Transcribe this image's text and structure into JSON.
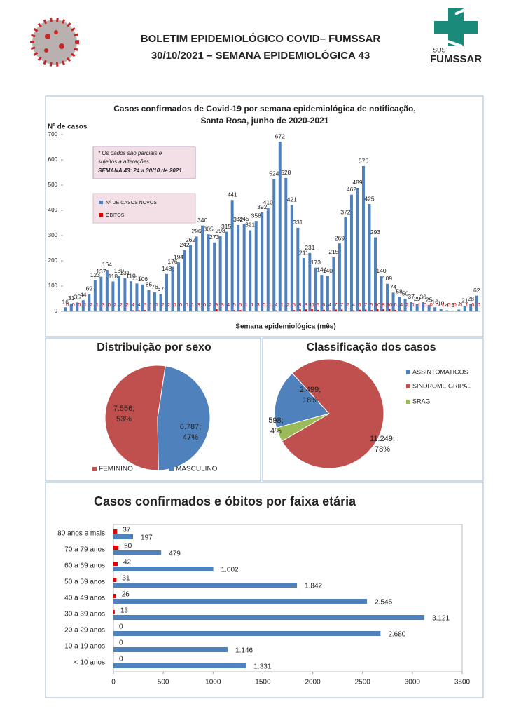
{
  "header": {
    "title_line1": "BOLETIM EPIDEMIOLÓGICO COVID– FUMSSAR",
    "title_line2": "30/10/2021 – SEMANA EPIDEMIOLÓGICA 43",
    "logo_sus": "SUS",
    "logo_name": "FUMSSAR"
  },
  "chart_data": [
    {
      "type": "bar",
      "title": "Casos confirmados de Covid-19 por semana epidemiológica de notificação,",
      "subtitle": "Santa Rosa, junho  de 2020-2021",
      "y_label": "Nº de casos",
      "x_label": "Semana epidemiológica (mês)",
      "annotation_line1": "* Os dados são parciais e",
      "annotation_line2": "sujeitos a alterações.",
      "annotation_line3": "SEMANA 43: 24 a 30/10 de 2021",
      "categories": [
        null,
        null,
        null,
        null,
        null,
        null,
        null,
        null,
        null,
        null,
        null,
        null,
        null,
        null,
        null,
        null,
        null,
        null,
        null,
        null,
        null,
        null,
        null,
        null,
        null,
        null,
        null,
        null,
        null,
        null,
        null,
        null,
        null,
        null,
        null,
        null,
        null,
        null,
        null,
        null,
        null,
        null,
        null,
        null,
        null,
        null,
        null,
        null,
        null,
        null,
        null,
        null,
        null,
        null,
        null,
        null,
        null,
        null,
        null,
        null,
        null,
        null,
        null,
        null,
        null,
        null,
        null,
        null,
        null,
        null
      ],
      "series": [
        {
          "name": "Nº DE CASOS NOVOS",
          "color": "#4f81bd",
          "values": [
            16,
            31,
            35,
            44,
            69,
            123,
            137,
            164,
            118,
            139,
            131,
            119,
            110,
            106,
            85,
            76,
            67,
            148,
            176,
            194,
            242,
            262,
            296,
            340,
            305,
            273,
            298,
            315,
            441,
            342,
            345,
            321,
            358,
            392,
            410,
            524,
            672,
            528,
            421,
            331,
            211,
            231,
            173,
            144,
            140,
            215,
            269,
            372,
            462,
            489,
            575,
            425,
            293,
            140,
            109,
            74,
            58,
            50,
            37,
            29,
            36,
            25,
            16,
            10,
            4,
            3,
            7,
            21,
            28,
            62
          ]
        },
        {
          "name": "ÓBITOS",
          "color": "#e00000",
          "values": [
            0,
            0,
            0,
            1,
            2,
            1,
            3,
            0,
            2,
            2,
            2,
            4,
            4,
            5,
            1,
            1,
            2,
            2,
            0,
            0,
            0,
            1,
            3,
            0,
            2,
            9,
            3,
            4,
            5,
            5,
            1,
            1,
            3,
            0,
            1,
            4,
            1,
            2,
            5,
            8,
            8,
            11,
            6,
            6,
            4,
            7,
            7,
            2,
            4,
            6,
            7,
            5,
            10,
            8,
            10,
            6,
            4,
            2,
            1,
            1,
            0,
            0,
            0,
            1,
            0,
            0,
            0,
            1,
            0,
            0
          ]
        }
      ],
      "ylim": [
        0,
        700
      ],
      "yticks": [
        0,
        100,
        200,
        300,
        400,
        500,
        600,
        700
      ],
      "grid": false
    },
    {
      "type": "pie",
      "title": "Distribuição por sexo",
      "categories": [
        "FEMININO",
        "MASCULINO"
      ],
      "values": [
        7556,
        6787
      ],
      "value_labels": [
        "7.556;",
        "6.787;"
      ],
      "percent_labels": [
        "53%",
        "47%"
      ],
      "colors": [
        "#c0504d",
        "#4f81bd"
      ],
      "legend": "bottom"
    },
    {
      "type": "pie",
      "title": "Classificação dos casos",
      "categories": [
        "ASSINTOMATICOS",
        "SINDROME GRIPAL",
        "SRAG"
      ],
      "values": [
        2499,
        11249,
        598
      ],
      "value_labels": [
        "2.499;",
        "11.249;",
        "598;"
      ],
      "percent_labels": [
        "18%",
        "78%",
        "4%"
      ],
      "colors": [
        "#4f81bd",
        "#c0504d",
        "#9bbb59"
      ],
      "legend": "right"
    },
    {
      "type": "hbar",
      "title": "Casos confirmados e óbitos  por faixa etária",
      "categories": [
        "80 anos e mais",
        "70 a 79 anos",
        "60 a 69 anos",
        "50 a 59 anos",
        "40 a 49 anos",
        "30 a 39 anos",
        "20 a 29 anos",
        "10 a 19 anos",
        "< 10 anos"
      ],
      "series": [
        {
          "name": "Casos",
          "color": "#4f81bd",
          "values": [
            197,
            479,
            1002,
            1842,
            2545,
            3121,
            2680,
            1146,
            1331
          ],
          "value_labels": [
            "197",
            "479",
            "1.002",
            "1.842",
            "2.545",
            "3.121",
            "2.680",
            "1.146",
            "1.331"
          ]
        },
        {
          "name": "Óbitos",
          "color": "#e00000",
          "values": [
            37,
            50,
            42,
            31,
            26,
            13,
            0,
            0,
            0
          ]
        }
      ],
      "xlim": [
        0,
        3500
      ],
      "xticks": [
        0,
        500,
        1000,
        1500,
        2000,
        2500,
        3000,
        3500
      ],
      "grid": false
    }
  ]
}
